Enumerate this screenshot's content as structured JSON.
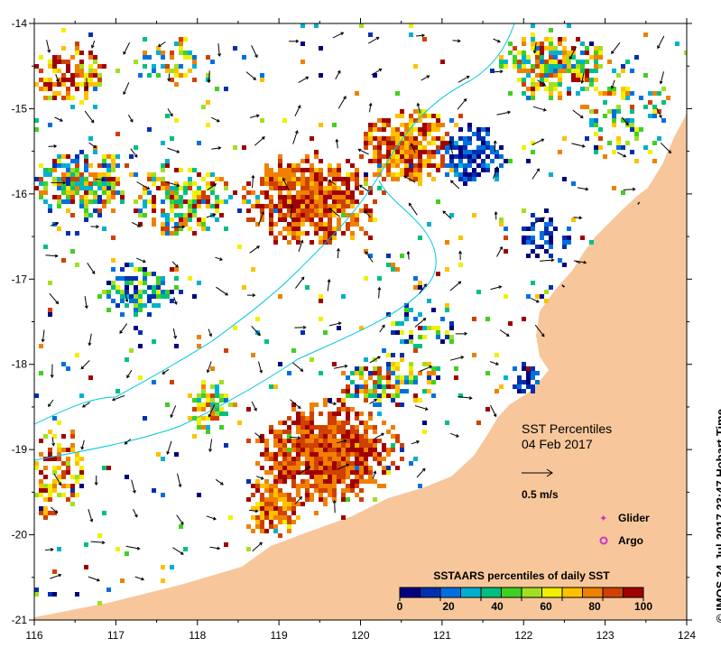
{
  "map": {
    "title_line1": "SST Percentiles",
    "title_line2": "04 Feb 2017",
    "scale_label": "0.5 m/s",
    "legend": {
      "glider_label": "Glider",
      "argo_label": "Argo",
      "glider_color": "#cc33cc",
      "argo_color": "#cc33cc"
    },
    "colorbar": {
      "title": "SSTAARS percentiles of daily SST",
      "ticks": [
        "0",
        "20",
        "40",
        "60",
        "80",
        "100"
      ],
      "colors": [
        "#000080",
        "#0030b0",
        "#0070e0",
        "#00b0d0",
        "#00c080",
        "#40d020",
        "#a0e020",
        "#f0f000",
        "#ffc000",
        "#f08000",
        "#d04000",
        "#a00000"
      ]
    },
    "x_axis_ticks": [
      "116",
      "117",
      "118",
      "119",
      "120",
      "121",
      "122",
      "123",
      "124"
    ],
    "y_axis_ticks": [
      "-14",
      "-15",
      "-16",
      "-17",
      "-18",
      "-19",
      "-20",
      "-21"
    ],
    "land_color": "#f7c79b",
    "credit": "© IMOS 24-Jul-2017 23:47 Hobart Time"
  }
}
